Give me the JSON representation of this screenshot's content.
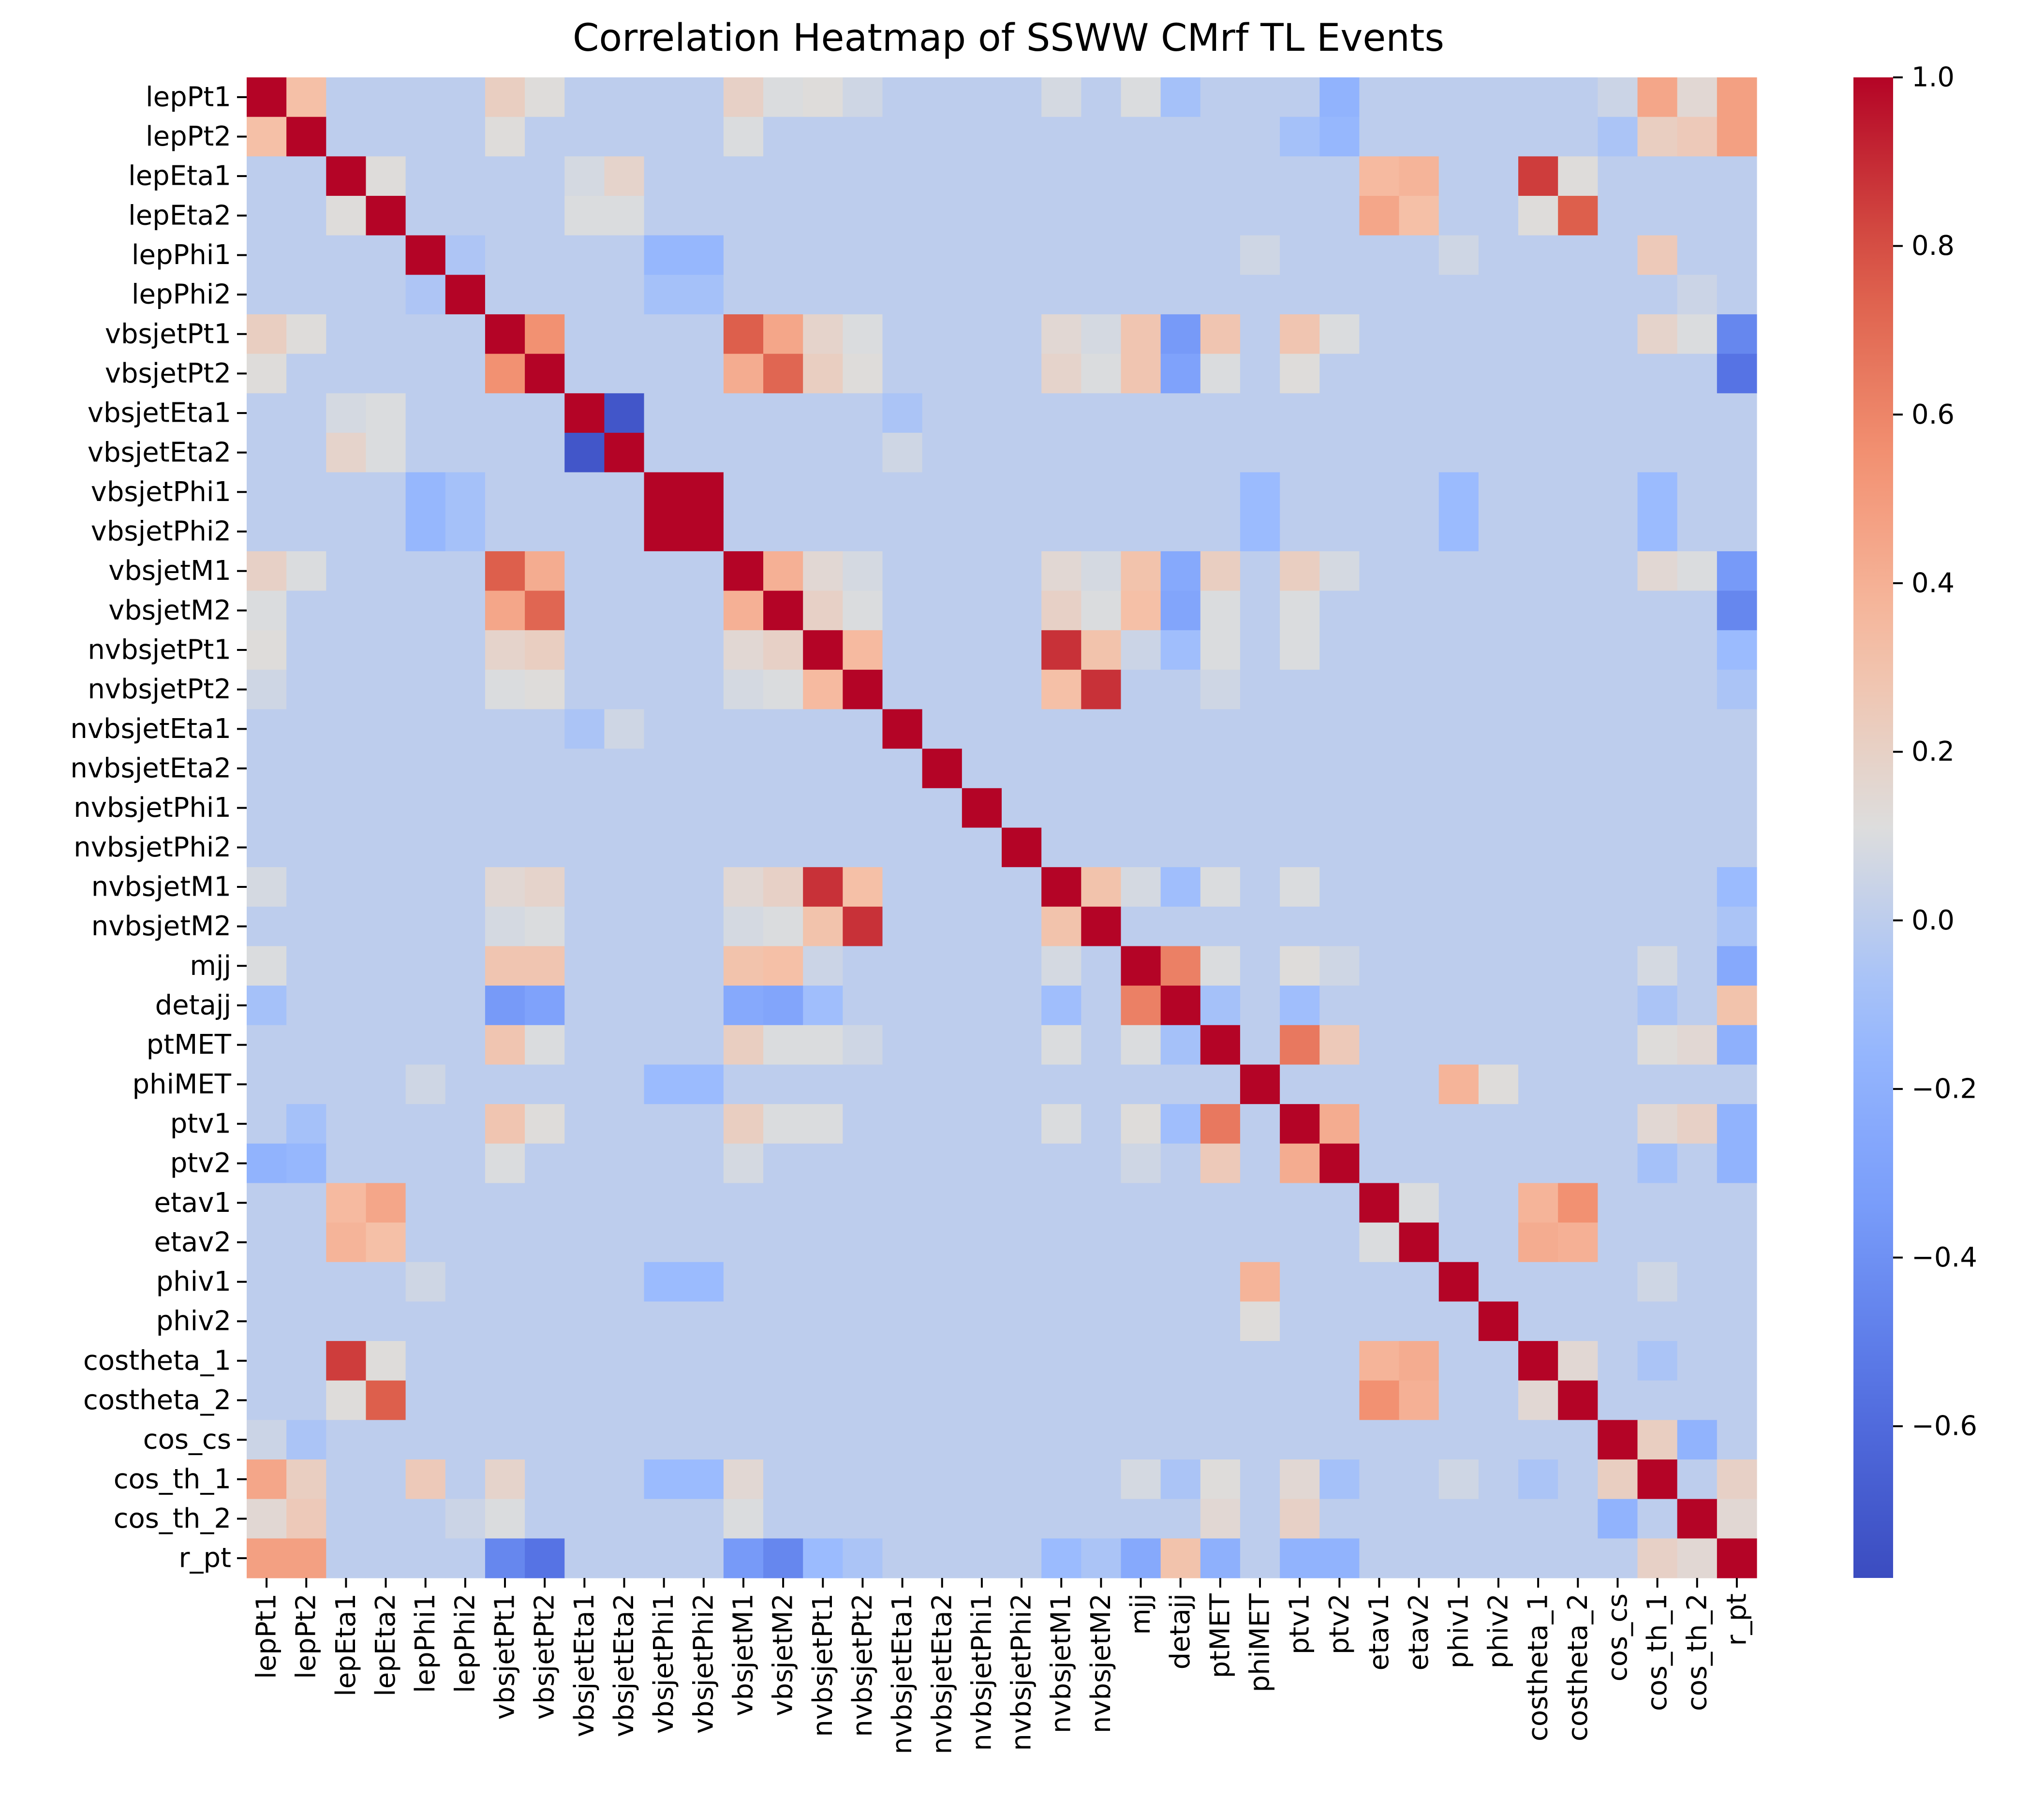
{
  "chart_data": {
    "type": "heatmap",
    "title": "Correlation Heatmap of SSWW CMrf TL Events",
    "xlabel": "",
    "ylabel": "",
    "variables": [
      "lepPt1",
      "lepPt2",
      "lepEta1",
      "lepEta2",
      "lepPhi1",
      "lepPhi2",
      "vbsjetPt1",
      "vbsjetPt2",
      "vbsjetEta1",
      "vbsjetEta2",
      "vbsjetPhi1",
      "vbsjetPhi2",
      "vbsjetM1",
      "vbsjetM2",
      "nvbsjetPt1",
      "nvbsjetPt2",
      "nvbsjetEta1",
      "nvbsjetEta2",
      "nvbsjetPhi1",
      "nvbsjetPhi2",
      "nvbsjetM1",
      "nvbsjetM2",
      "mjj",
      "detajj",
      "ptMET",
      "phiMET",
      "ptv1",
      "ptv2",
      "etav1",
      "etav2",
      "phiv1",
      "phiv2",
      "costheta_1",
      "costheta_2",
      "cos_cs",
      "cos_th_1",
      "cos_th_2",
      "r_pt"
    ],
    "correlations": [
      {
        "x": "lepPt1",
        "y": "lepPt2",
        "v": 0.32
      },
      {
        "x": "lepPt1",
        "y": "vbsjetPt1",
        "v": 0.22
      },
      {
        "x": "lepPt1",
        "y": "vbsjetPt2",
        "v": 0.12
      },
      {
        "x": "lepPt1",
        "y": "vbsjetM1",
        "v": 0.2
      },
      {
        "x": "lepPt1",
        "y": "vbsjetM2",
        "v": 0.1
      },
      {
        "x": "lepPt1",
        "y": "nvbsjetPt1",
        "v": 0.12
      },
      {
        "x": "lepPt1",
        "y": "nvbsjetPt2",
        "v": 0.06
      },
      {
        "x": "lepPt1",
        "y": "nvbsjetM1",
        "v": 0.08
      },
      {
        "x": "lepPt1",
        "y": "mjj",
        "v": 0.1
      },
      {
        "x": "lepPt1",
        "y": "detajj",
        "v": -0.08
      },
      {
        "x": "lepPt1",
        "y": "ptv2",
        "v": -0.18
      },
      {
        "x": "lepPt1",
        "y": "cos_cs",
        "v": 0.05
      },
      {
        "x": "lepPt1",
        "y": "cos_th_1",
        "v": 0.45
      },
      {
        "x": "lepPt1",
        "y": "cos_th_2",
        "v": 0.15
      },
      {
        "x": "lepPt1",
        "y": "r_pt",
        "v": 0.48
      },
      {
        "x": "lepPt2",
        "y": "vbsjetPt1",
        "v": 0.12
      },
      {
        "x": "lepPt2",
        "y": "vbsjetM1",
        "v": 0.1
      },
      {
        "x": "lepPt2",
        "y": "ptv1",
        "v": -0.08
      },
      {
        "x": "lepPt2",
        "y": "ptv2",
        "v": -0.15
      },
      {
        "x": "lepPt2",
        "y": "cos_cs",
        "v": -0.06
      },
      {
        "x": "lepPt2",
        "y": "cos_th_1",
        "v": 0.22
      },
      {
        "x": "lepPt2",
        "y": "cos_th_2",
        "v": 0.25
      },
      {
        "x": "lepPt2",
        "y": "r_pt",
        "v": 0.48
      },
      {
        "x": "lepEta1",
        "y": "lepEta2",
        "v": 0.12
      },
      {
        "x": "lepEta1",
        "y": "vbsjetEta1",
        "v": 0.08
      },
      {
        "x": "lepEta1",
        "y": "vbsjetEta2",
        "v": 0.18
      },
      {
        "x": "lepEta1",
        "y": "etav1",
        "v": 0.35
      },
      {
        "x": "lepEta1",
        "y": "etav2",
        "v": 0.38
      },
      {
        "x": "lepEta1",
        "y": "costheta_1",
        "v": 0.85
      },
      {
        "x": "lepEta1",
        "y": "costheta_2",
        "v": 0.12
      },
      {
        "x": "lepEta2",
        "y": "vbsjetEta1",
        "v": 0.1
      },
      {
        "x": "lepEta2",
        "y": "vbsjetEta2",
        "v": 0.1
      },
      {
        "x": "lepEta2",
        "y": "etav1",
        "v": 0.45
      },
      {
        "x": "lepEta2",
        "y": "etav2",
        "v": 0.32
      },
      {
        "x": "lepEta2",
        "y": "costheta_1",
        "v": 0.12
      },
      {
        "x": "lepEta2",
        "y": "costheta_2",
        "v": 0.75
      },
      {
        "x": "lepPhi1",
        "y": "vbsjetPhi1",
        "v": -0.15
      },
      {
        "x": "lepPhi1",
        "y": "vbsjetPhi2",
        "v": -0.15
      },
      {
        "x": "lepPhi1",
        "y": "phiMET",
        "v": 0.06
      },
      {
        "x": "lepPhi1",
        "y": "phiv1",
        "v": 0.06
      },
      {
        "x": "lepPhi1",
        "y": "cos_th_1",
        "v": 0.25
      },
      {
        "x": "lepPhi2",
        "y": "lepPhi1",
        "v": -0.05
      },
      {
        "x": "lepPhi2",
        "y": "vbsjetPhi1",
        "v": -0.08
      },
      {
        "x": "lepPhi2",
        "y": "vbsjetPhi2",
        "v": -0.08
      },
      {
        "x": "lepPhi2",
        "y": "cos_th_2",
        "v": 0.05
      },
      {
        "x": "vbsjetPt1",
        "y": "vbsjetPt2",
        "v": 0.55
      },
      {
        "x": "vbsjetPt1",
        "y": "vbsjetM1",
        "v": 0.75
      },
      {
        "x": "vbsjetPt1",
        "y": "vbsjetM2",
        "v": 0.45
      },
      {
        "x": "vbsjetPt1",
        "y": "nvbsjetPt1",
        "v": 0.18
      },
      {
        "x": "vbsjetPt1",
        "y": "nvbsjetPt2",
        "v": 0.1
      },
      {
        "x": "vbsjetPt1",
        "y": "nvbsjetM1",
        "v": 0.15
      },
      {
        "x": "vbsjetPt1",
        "y": "nvbsjetM2",
        "v": 0.08
      },
      {
        "x": "vbsjetPt1",
        "y": "mjj",
        "v": 0.28
      },
      {
        "x": "vbsjetPt1",
        "y": "detajj",
        "v": -0.35
      },
      {
        "x": "vbsjetPt1",
        "y": "ptMET",
        "v": 0.28
      },
      {
        "x": "vbsjetPt1",
        "y": "ptv1",
        "v": 0.28
      },
      {
        "x": "vbsjetPt1",
        "y": "ptv2",
        "v": 0.1
      },
      {
        "x": "vbsjetPt1",
        "y": "cos_th_1",
        "v": 0.18
      },
      {
        "x": "vbsjetPt1",
        "y": "cos_th_2",
        "v": 0.1
      },
      {
        "x": "vbsjetPt1",
        "y": "r_pt",
        "v": -0.45
      },
      {
        "x": "vbsjetPt2",
        "y": "vbsjetM1",
        "v": 0.42
      },
      {
        "x": "vbsjetPt2",
        "y": "vbsjetM2",
        "v": 0.72
      },
      {
        "x": "vbsjetPt2",
        "y": "nvbsjetPt1",
        "v": 0.22
      },
      {
        "x": "vbsjetPt2",
        "y": "nvbsjetPt2",
        "v": 0.12
      },
      {
        "x": "vbsjetPt2",
        "y": "nvbsjetM1",
        "v": 0.18
      },
      {
        "x": "vbsjetPt2",
        "y": "nvbsjetM2",
        "v": 0.1
      },
      {
        "x": "vbsjetPt2",
        "y": "mjj",
        "v": 0.28
      },
      {
        "x": "vbsjetPt2",
        "y": "detajj",
        "v": -0.3
      },
      {
        "x": "vbsjetPt2",
        "y": "ptMET",
        "v": 0.1
      },
      {
        "x": "vbsjetPt2",
        "y": "ptv1",
        "v": 0.12
      },
      {
        "x": "vbsjetPt2",
        "y": "r_pt",
        "v": -0.55
      },
      {
        "x": "vbsjetEta1",
        "y": "vbsjetEta2",
        "v": -0.72
      },
      {
        "x": "vbsjetEta1",
        "y": "nvbsjetEta1",
        "v": -0.06
      },
      {
        "x": "vbsjetEta2",
        "y": "nvbsjetEta1",
        "v": 0.06
      },
      {
        "x": "vbsjetPhi1",
        "y": "vbsjetPhi2",
        "v": 1.0
      },
      {
        "x": "vbsjetPhi1",
        "y": "phiMET",
        "v": -0.12
      },
      {
        "x": "vbsjetPhi1",
        "y": "phiv1",
        "v": -0.12
      },
      {
        "x": "vbsjetPhi2",
        "y": "phiMET",
        "v": -0.12
      },
      {
        "x": "vbsjetPhi2",
        "y": "phiv1",
        "v": -0.12
      },
      {
        "x": "vbsjetPhi1",
        "y": "cos_th_1",
        "v": -0.12
      },
      {
        "x": "vbsjetPhi2",
        "y": "cos_th_1",
        "v": -0.12
      },
      {
        "x": "vbsjetM1",
        "y": "vbsjetM2",
        "v": 0.4
      },
      {
        "x": "vbsjetM1",
        "y": "nvbsjetPt1",
        "v": 0.15
      },
      {
        "x": "vbsjetM1",
        "y": "nvbsjetPt2",
        "v": 0.08
      },
      {
        "x": "vbsjetM1",
        "y": "nvbsjetM1",
        "v": 0.15
      },
      {
        "x": "vbsjetM1",
        "y": "nvbsjetM2",
        "v": 0.08
      },
      {
        "x": "vbsjetM1",
        "y": "mjj",
        "v": 0.3
      },
      {
        "x": "vbsjetM1",
        "y": "detajj",
        "v": -0.25
      },
      {
        "x": "vbsjetM1",
        "y": "ptMET",
        "v": 0.22
      },
      {
        "x": "vbsjetM1",
        "y": "ptv1",
        "v": 0.22
      },
      {
        "x": "vbsjetM1",
        "y": "ptv2",
        "v": 0.08
      },
      {
        "x": "vbsjetM1",
        "y": "cos_th_1",
        "v": 0.15
      },
      {
        "x": "vbsjetM1",
        "y": "cos_th_2",
        "v": 0.1
      },
      {
        "x": "vbsjetM1",
        "y": "r_pt",
        "v": -0.35
      },
      {
        "x": "vbsjetM2",
        "y": "nvbsjetPt1",
        "v": 0.2
      },
      {
        "x": "vbsjetM2",
        "y": "nvbsjetPt2",
        "v": 0.1
      },
      {
        "x": "vbsjetM2",
        "y": "nvbsjetM1",
        "v": 0.2
      },
      {
        "x": "vbsjetM2",
        "y": "nvbsjetM2",
        "v": 0.1
      },
      {
        "x": "vbsjetM2",
        "y": "mjj",
        "v": 0.32
      },
      {
        "x": "vbsjetM2",
        "y": "detajj",
        "v": -0.28
      },
      {
        "x": "vbsjetM2",
        "y": "ptMET",
        "v": 0.1
      },
      {
        "x": "vbsjetM2",
        "y": "ptv1",
        "v": 0.1
      },
      {
        "x": "vbsjetM2",
        "y": "r_pt",
        "v": -0.45
      },
      {
        "x": "nvbsjetPt1",
        "y": "nvbsjetPt2",
        "v": 0.35
      },
      {
        "x": "nvbsjetPt1",
        "y": "nvbsjetM1",
        "v": 0.88
      },
      {
        "x": "nvbsjetPt1",
        "y": "nvbsjetM2",
        "v": 0.3
      },
      {
        "x": "nvbsjetPt1",
        "y": "mjj",
        "v": 0.05
      },
      {
        "x": "nvbsjetPt1",
        "y": "detajj",
        "v": -0.1
      },
      {
        "x": "nvbsjetPt1",
        "y": "ptMET",
        "v": 0.1
      },
      {
        "x": "nvbsjetPt1",
        "y": "ptv1",
        "v": 0.1
      },
      {
        "x": "nvbsjetPt1",
        "y": "r_pt",
        "v": -0.12
      },
      {
        "x": "nvbsjetPt2",
        "y": "nvbsjetM1",
        "v": 0.32
      },
      {
        "x": "nvbsjetPt2",
        "y": "nvbsjetM2",
        "v": 0.88
      },
      {
        "x": "nvbsjetPt2",
        "y": "ptMET",
        "v": 0.06
      },
      {
        "x": "nvbsjetPt2",
        "y": "r_pt",
        "v": -0.06
      },
      {
        "x": "nvbsjetM1",
        "y": "nvbsjetM2",
        "v": 0.3
      },
      {
        "x": "nvbsjetM1",
        "y": "mjj",
        "v": 0.08
      },
      {
        "x": "nvbsjetM1",
        "y": "detajj",
        "v": -0.1
      },
      {
        "x": "nvbsjetM1",
        "y": "ptMET",
        "v": 0.1
      },
      {
        "x": "nvbsjetM1",
        "y": "ptv1",
        "v": 0.1
      },
      {
        "x": "nvbsjetM1",
        "y": "r_pt",
        "v": -0.12
      },
      {
        "x": "nvbsjetM2",
        "y": "r_pt",
        "v": -0.06
      },
      {
        "x": "mjj",
        "y": "detajj",
        "v": 0.62
      },
      {
        "x": "mjj",
        "y": "ptMET",
        "v": 0.1
      },
      {
        "x": "mjj",
        "y": "ptv1",
        "v": 0.12
      },
      {
        "x": "mjj",
        "y": "ptv2",
        "v": 0.06
      },
      {
        "x": "mjj",
        "y": "cos_th_1",
        "v": 0.08
      },
      {
        "x": "mjj",
        "y": "r_pt",
        "v": -0.25
      },
      {
        "x": "detajj",
        "y": "ptMET",
        "v": -0.08
      },
      {
        "x": "detajj",
        "y": "ptv1",
        "v": -0.1
      },
      {
        "x": "detajj",
        "y": "cos_th_1",
        "v": -0.06
      },
      {
        "x": "detajj",
        "y": "r_pt",
        "v": 0.3
      },
      {
        "x": "ptMET",
        "y": "ptv1",
        "v": 0.65
      },
      {
        "x": "ptMET",
        "y": "ptv2",
        "v": 0.25
      },
      {
        "x": "ptMET",
        "y": "cos_th_1",
        "v": 0.12
      },
      {
        "x": "ptMET",
        "y": "cos_th_2",
        "v": 0.15
      },
      {
        "x": "ptMET",
        "y": "r_pt",
        "v": -0.2
      },
      {
        "x": "phiMET",
        "y": "phiv1",
        "v": 0.38
      },
      {
        "x": "phiMET",
        "y": "phiv2",
        "v": 0.12
      },
      {
        "x": "ptv1",
        "y": "ptv2",
        "v": 0.42
      },
      {
        "x": "ptv1",
        "y": "cos_th_1",
        "v": 0.15
      },
      {
        "x": "ptv1",
        "y": "cos_th_2",
        "v": 0.2
      },
      {
        "x": "ptv1",
        "y": "r_pt",
        "v": -0.18
      },
      {
        "x": "ptv2",
        "y": "cos_th_1",
        "v": -0.08
      },
      {
        "x": "ptv2",
        "y": "r_pt",
        "v": -0.18
      },
      {
        "x": "etav1",
        "y": "etav2",
        "v": 0.1
      },
      {
        "x": "etav1",
        "y": "costheta_1",
        "v": 0.38
      },
      {
        "x": "etav1",
        "y": "costheta_2",
        "v": 0.55
      },
      {
        "x": "etav2",
        "y": "costheta_1",
        "v": 0.42
      },
      {
        "x": "etav2",
        "y": "costheta_2",
        "v": 0.4
      },
      {
        "x": "phiv1",
        "y": "cos_th_1",
        "v": 0.06
      },
      {
        "x": "costheta_1",
        "y": "costheta_2",
        "v": 0.15
      },
      {
        "x": "costheta_1",
        "y": "cos_th_1",
        "v": -0.06
      },
      {
        "x": "cos_cs",
        "y": "cos_th_1",
        "v": 0.22
      },
      {
        "x": "cos_cs",
        "y": "cos_th_2",
        "v": -0.18
      },
      {
        "x": "cos_th_1",
        "y": "r_pt",
        "v": 0.2
      },
      {
        "x": "cos_th_2",
        "y": "r_pt",
        "v": 0.15
      }
    ],
    "colorbar": {
      "min": -0.78,
      "max": 1.0,
      "ticks": [
        1.0,
        0.8,
        0.6,
        0.4,
        0.2,
        0.0,
        -0.2,
        -0.4,
        -0.6
      ],
      "tick_labels": [
        "1.0",
        "0.8",
        "0.6",
        "0.4",
        "0.2",
        "0.0",
        "−0.2",
        "−0.4",
        "−0.6"
      ],
      "colormap": "coolwarm"
    }
  }
}
